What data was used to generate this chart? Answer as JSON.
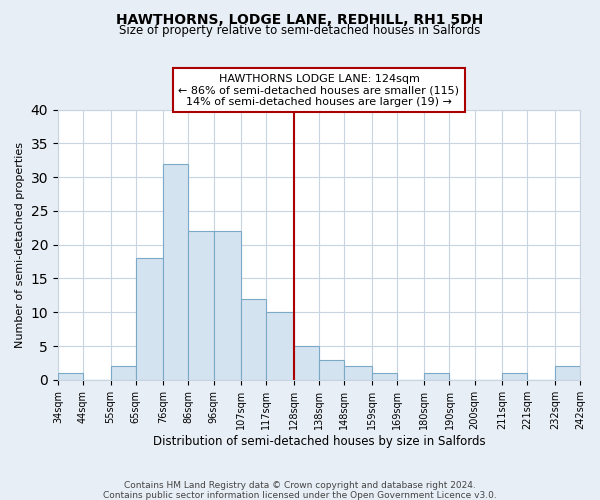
{
  "title": "HAWTHORNS, LODGE LANE, REDHILL, RH1 5DH",
  "subtitle": "Size of property relative to semi-detached houses in Salfords",
  "xlabel": "Distribution of semi-detached houses by size in Salfords",
  "ylabel": "Number of semi-detached properties",
  "bin_edges": [
    34,
    44,
    55,
    65,
    76,
    86,
    96,
    107,
    117,
    128,
    138,
    148,
    159,
    169,
    180,
    190,
    200,
    211,
    221,
    232,
    242
  ],
  "bin_labels": [
    "34sqm",
    "44sqm",
    "55sqm",
    "65sqm",
    "76sqm",
    "86sqm",
    "96sqm",
    "107sqm",
    "117sqm",
    "128sqm",
    "138sqm",
    "148sqm",
    "159sqm",
    "169sqm",
    "180sqm",
    "190sqm",
    "200sqm",
    "211sqm",
    "221sqm",
    "232sqm",
    "242sqm"
  ],
  "counts": [
    1,
    0,
    2,
    18,
    32,
    22,
    22,
    12,
    10,
    5,
    3,
    2,
    1,
    0,
    1,
    0,
    0,
    1,
    0,
    2
  ],
  "bar_color": "#d4e3f0",
  "bar_edge_color": "#7aaac8",
  "vline_x": 128,
  "vline_color": "#aa0000",
  "ylim": [
    0,
    40
  ],
  "yticks": [
    0,
    5,
    10,
    15,
    20,
    25,
    30,
    35,
    40
  ],
  "annotation_title": "HAWTHORNS LODGE LANE: 124sqm",
  "annotation_line1": "← 86% of semi-detached houses are smaller (115)",
  "annotation_line2": "14% of semi-detached houses are larger (19) →",
  "annotation_box_color": "#ffffff",
  "annotation_box_edge": "#aa0000",
  "footnote1": "Contains HM Land Registry data © Crown copyright and database right 2024.",
  "footnote2": "Contains public sector information licensed under the Open Government Licence v3.0.",
  "background_color": "#e8eef5",
  "plot_background": "#ffffff",
  "grid_color": "#c8d4e0"
}
